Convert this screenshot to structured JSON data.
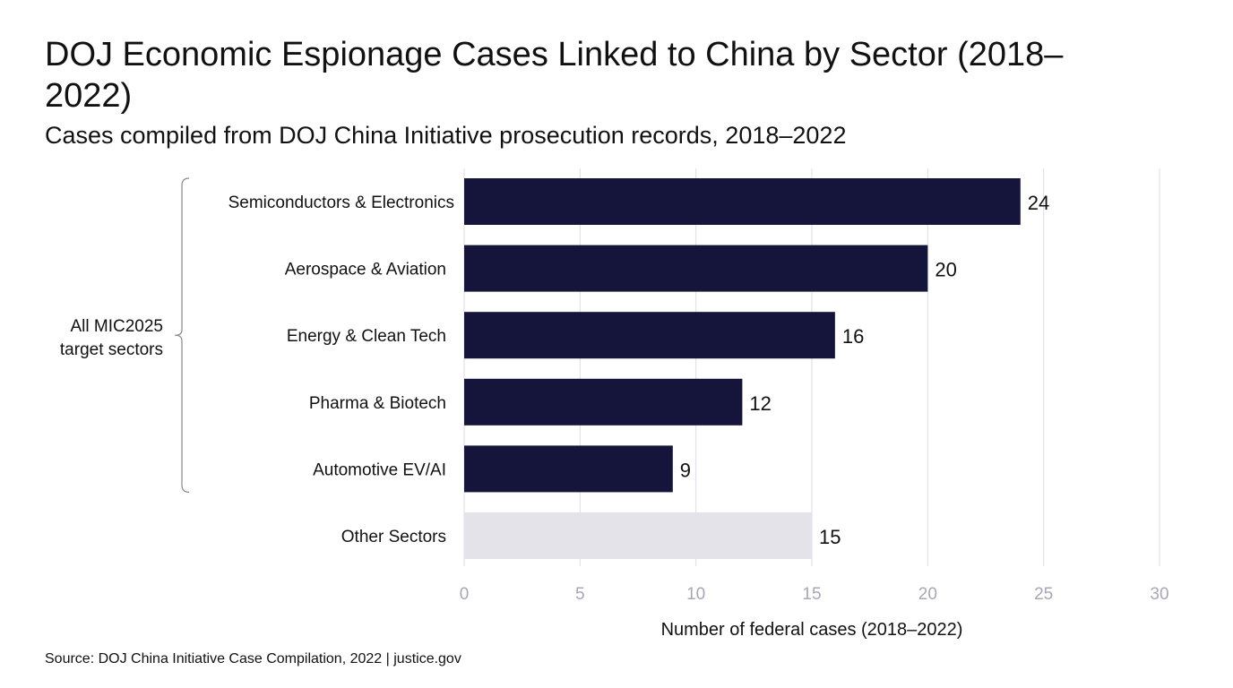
{
  "chart_data": {
    "type": "bar",
    "orientation": "horizontal",
    "title": "DOJ Economic Espionage Cases Linked to China by Sector (2018–2022)",
    "subtitle": "Cases compiled from DOJ China Initiative prosecution records, 2018–2022",
    "categories": [
      "Semiconductors & Electronics",
      "Aerospace & Aviation",
      "Energy & Clean Tech",
      "Pharma & Biotech",
      "Automotive EV/AI",
      "Other Sectors"
    ],
    "values": [
      24,
      20,
      16,
      12,
      9,
      15
    ],
    "value_labels": [
      "24",
      "20",
      "16",
      "12",
      "9",
      "15"
    ],
    "highlighted": [
      true,
      true,
      true,
      true,
      true,
      false
    ],
    "xlabel": "Number of federal cases (2018–2022)",
    "ylabel": "",
    "xlim": [
      0,
      30
    ],
    "xticks": [
      "0",
      "5",
      "10",
      "15",
      "20",
      "25",
      "30"
    ],
    "grid": "vertical",
    "group_annotation": {
      "label_lines": [
        "All MIC2025",
        "target sectors"
      ],
      "spans": [
        0,
        4
      ]
    },
    "colors": {
      "highlight": "#15143a",
      "other": "#e4e3ea",
      "grid": "#dddce3",
      "tick": "#a8a6b8"
    },
    "source": "Source: DOJ China Initiative Case Compilation, 2022 | justice.gov"
  }
}
